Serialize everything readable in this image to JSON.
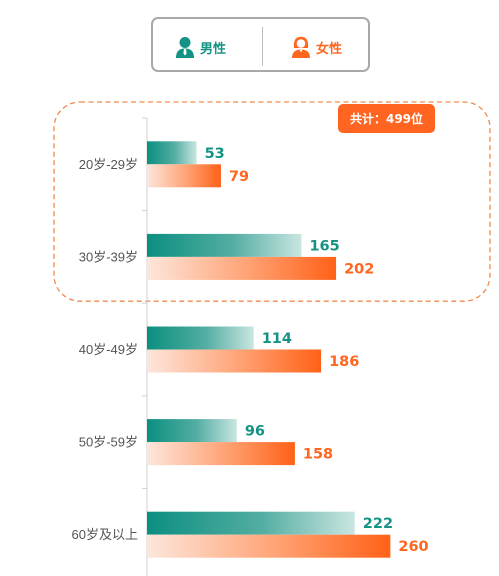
{
  "legend": {
    "male_label": "男性",
    "female_label": "女性"
  },
  "badge": {
    "text": "共计：499位"
  },
  "colors": {
    "male": "#149385",
    "female": "#ff6620",
    "badge": "#ff6520",
    "highlight_border": "#f08a4b"
  },
  "chart_data": {
    "type": "bar",
    "orientation": "horizontal",
    "categories": [
      "20岁-29岁",
      "30岁-39岁",
      "40岁-49岁",
      "50岁-59岁",
      "60岁及以上"
    ],
    "series": [
      {
        "name": "男性",
        "values": [
          53,
          165,
          114,
          96,
          222
        ]
      },
      {
        "name": "女性",
        "values": [
          79,
          202,
          186,
          158,
          260
        ]
      }
    ],
    "legend_position": "top",
    "highlighted_categories": [
      "20岁-29岁",
      "30岁-39岁"
    ],
    "annotation": "共计：499位"
  }
}
